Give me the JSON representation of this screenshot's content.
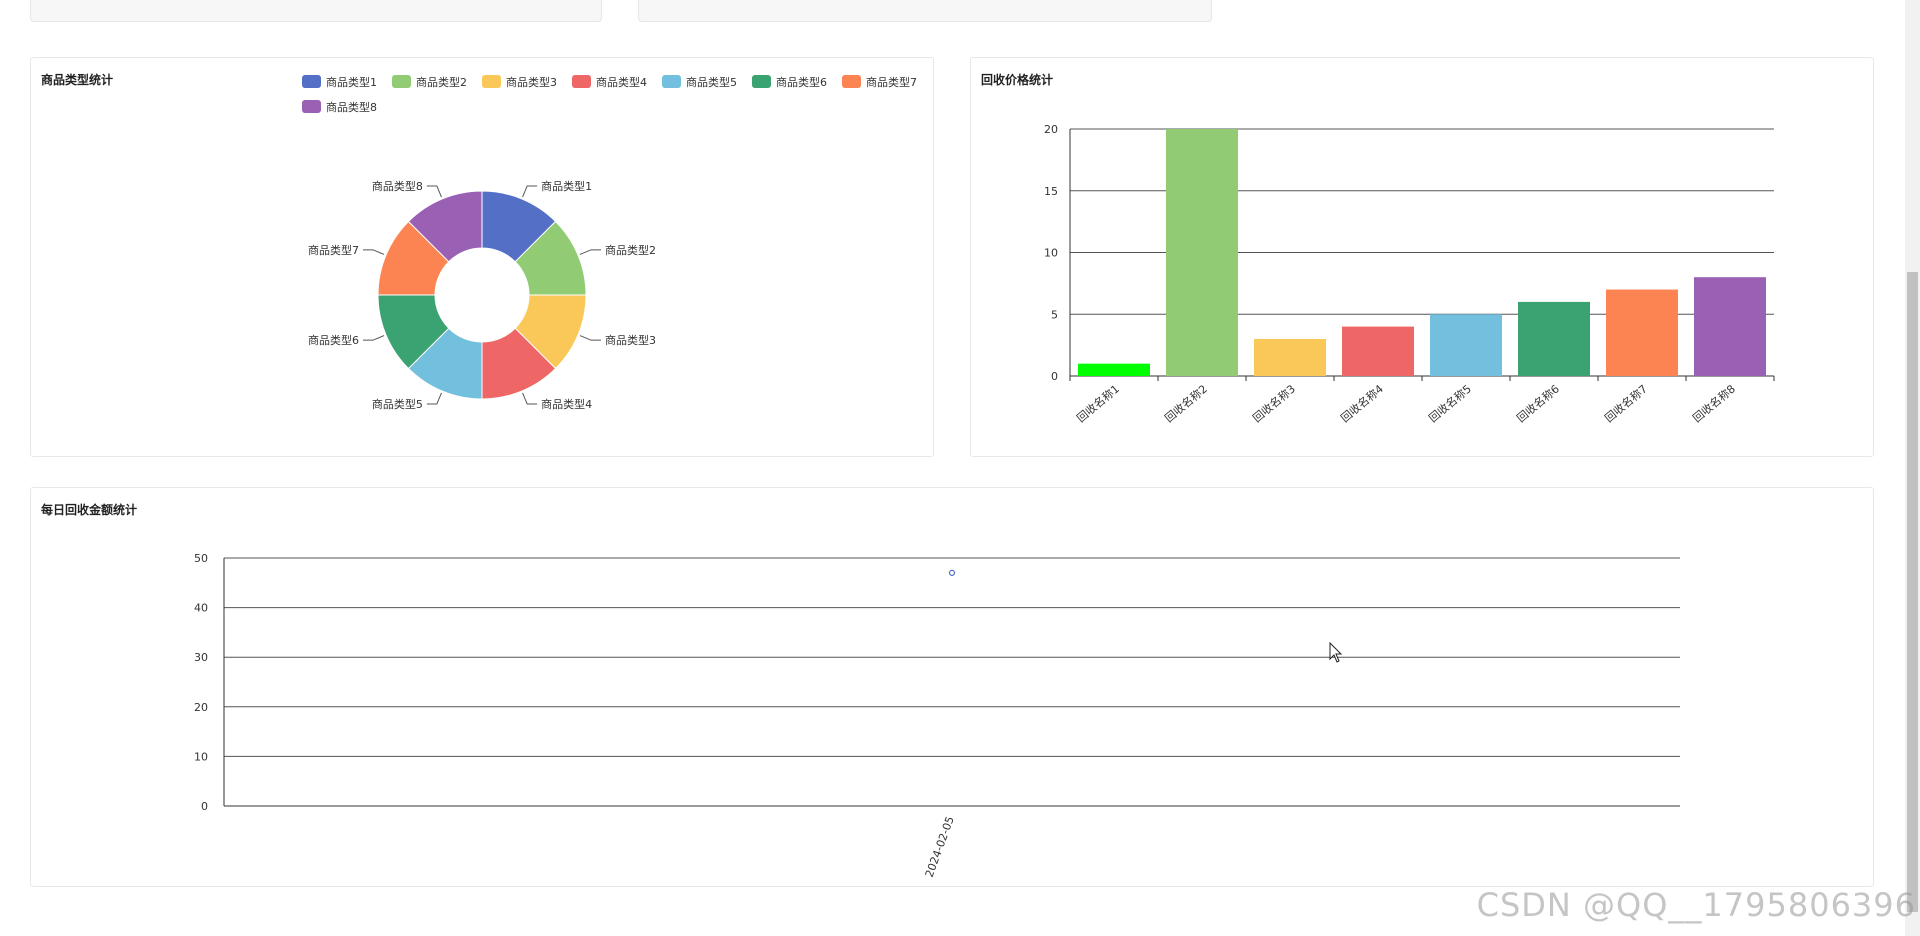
{
  "pie_panel": {
    "title": "商品类型统计"
  },
  "bar_panel": {
    "title": "回收价格统计"
  },
  "line_panel": {
    "title": "每日回收金额统计"
  },
  "watermark": "CSDN @QQ__1795806396",
  "colors": {
    "palette": [
      "#5470c6",
      "#91cc75",
      "#fac858",
      "#ee6666",
      "#73c0de",
      "#3ba272",
      "#fc8452",
      "#9a60b4"
    ],
    "bar_first": "#00ff00",
    "line_point": "#5470c6"
  },
  "chart_data": [
    {
      "type": "pie",
      "donut": true,
      "title": "商品类型统计",
      "legend_position": "top",
      "categories": [
        "商品类型1",
        "商品类型2",
        "商品类型3",
        "商品类型4",
        "商品类型5",
        "商品类型6",
        "商品类型7",
        "商品类型8"
      ],
      "values": [
        1,
        1,
        1,
        1,
        1,
        1,
        1,
        1
      ]
    },
    {
      "type": "bar",
      "title": "回收价格统计",
      "categories": [
        "回收名称1",
        "回收名称2",
        "回收名称3",
        "回收名称4",
        "回收名称5",
        "回收名称6",
        "回收名称7",
        "回收名称8"
      ],
      "values": [
        1,
        20,
        3,
        4,
        5,
        6,
        7,
        8
      ],
      "ylim": [
        0,
        20
      ],
      "yticks": [
        0,
        5,
        10,
        15,
        20
      ],
      "grid": true
    },
    {
      "type": "scatter",
      "title": "每日回收金额统计",
      "x": [
        "2024-02-05"
      ],
      "values": [
        47
      ],
      "ylim": [
        0,
        50
      ],
      "yticks": [
        0,
        10,
        20,
        30,
        40,
        50
      ],
      "grid": true
    }
  ]
}
